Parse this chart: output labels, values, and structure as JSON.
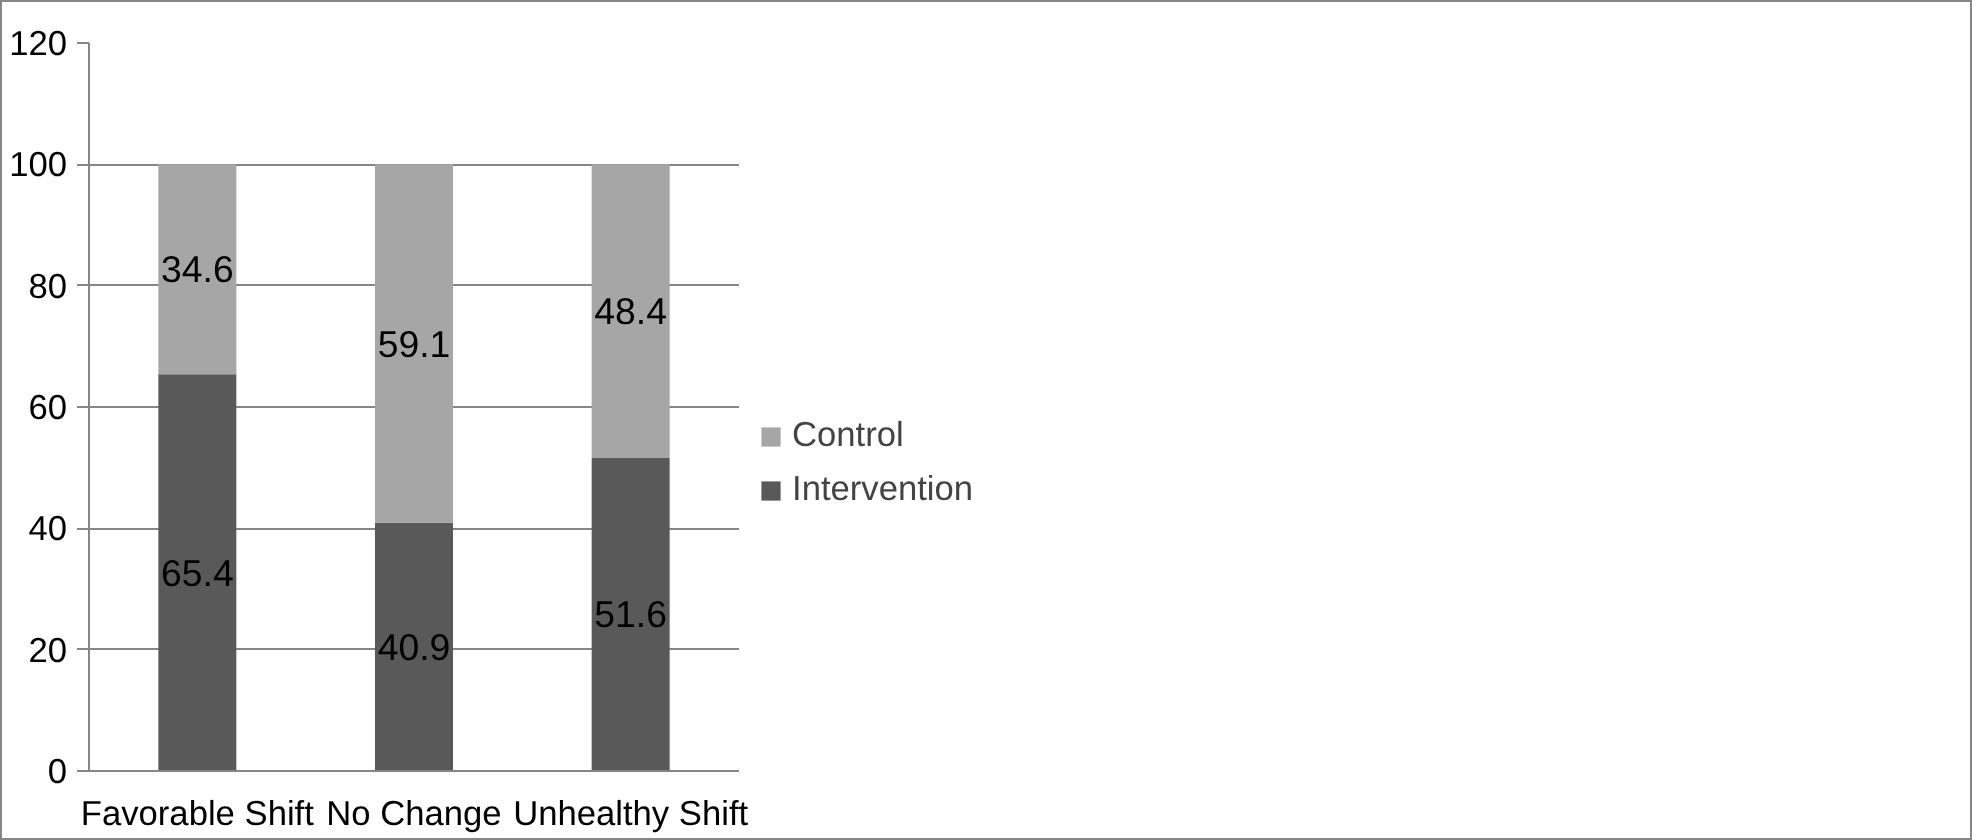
{
  "chart_data": {
    "type": "bar",
    "stacked": true,
    "categories": [
      "Favorable Shift",
      "No Change",
      "Unhealthy Shift"
    ],
    "series": [
      {
        "name": "Intervention",
        "color": "#595959",
        "values": [
          65.4,
          40.9,
          51.6
        ]
      },
      {
        "name": "Control",
        "color": "#a6a6a6",
        "values": [
          34.6,
          59.1,
          48.4
        ]
      }
    ],
    "ylim": [
      0,
      120
    ],
    "yticks": [
      0,
      20,
      40,
      60,
      80,
      100,
      120
    ],
    "grid": "y",
    "legend": "right",
    "data_labels": true
  }
}
